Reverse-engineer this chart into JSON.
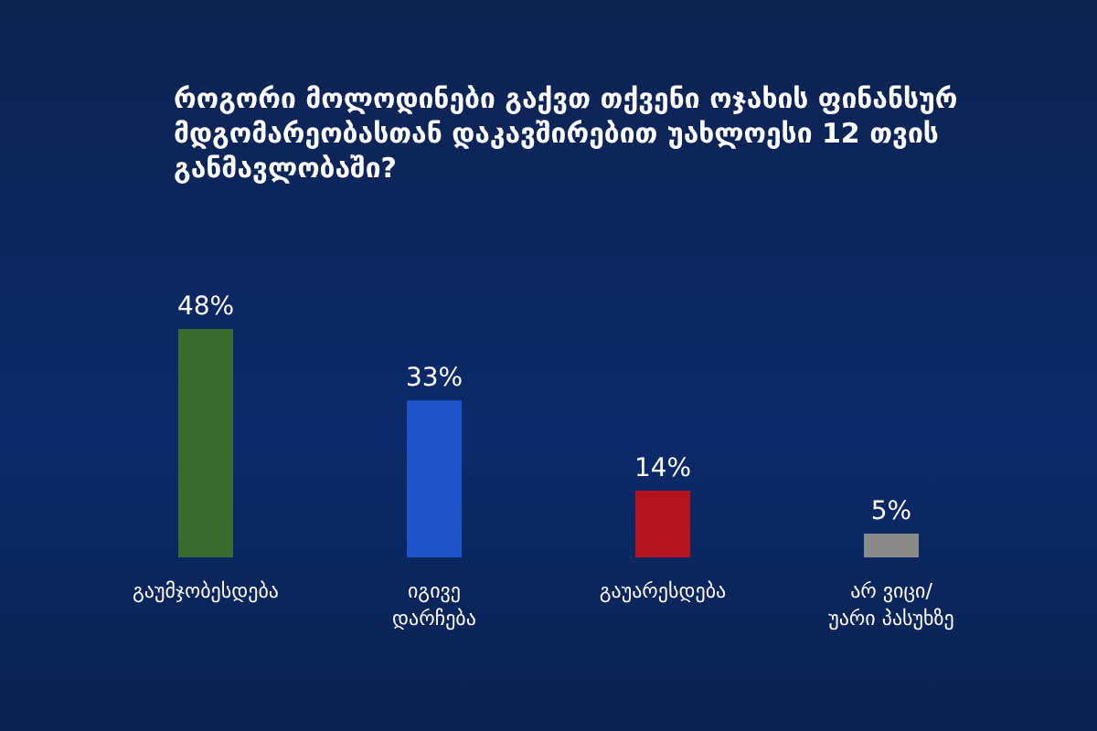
{
  "chart_data": {
    "type": "bar",
    "title": "როგორი მოლოდინები გაქვთ თქვენი ოჯახის ფინანსურ მდგომარეობასთან დაკავშირებით უახლოესი 12 თვის განმავლობაში?",
    "categories": [
      "გაუმჯობესდება",
      "იგივე დარჩება",
      "გაუარესდება",
      "არ ვიცი/ უარი პასუხზე"
    ],
    "values": [
      48,
      33,
      14,
      5
    ],
    "value_labels": [
      "48%",
      "33%",
      "14%",
      "5%"
    ],
    "colors": [
      "#3a6a2e",
      "#1f55c8",
      "#b5141e",
      "#8a8a8a"
    ]
  }
}
